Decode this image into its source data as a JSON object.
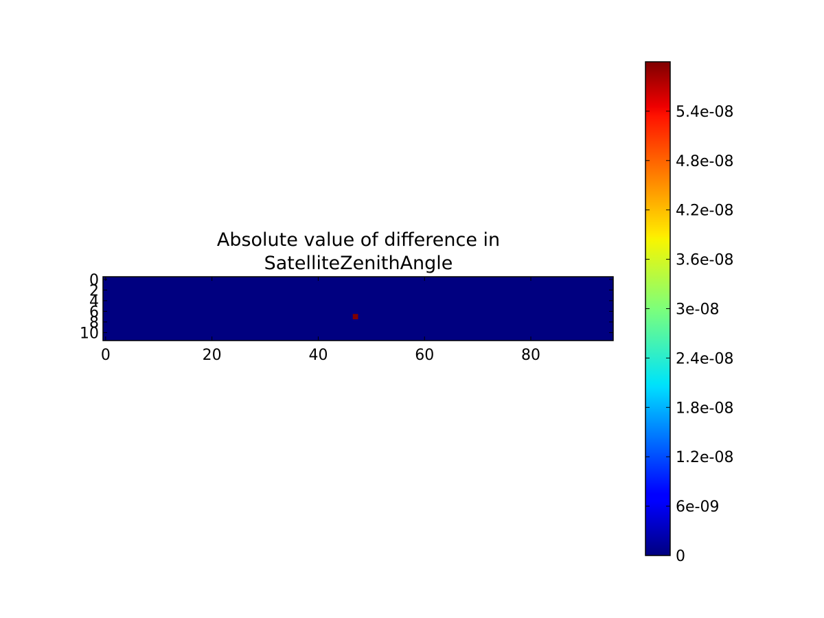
{
  "chart_data": {
    "type": "heatmap",
    "title": [
      "Absolute value of difference in",
      "SatelliteZenithAngle"
    ],
    "xlabel": "",
    "ylabel": "",
    "grid": false,
    "shape": {
      "rows": 12,
      "cols": 96
    },
    "xlim": [
      0,
      96
    ],
    "ylim": [
      12,
      0
    ],
    "x_ticks": [
      0,
      20,
      40,
      60,
      80
    ],
    "x_tick_labels": [
      "0",
      "20",
      "40",
      "60",
      "80"
    ],
    "y_ticks": [
      0,
      2,
      4,
      6,
      8,
      10
    ],
    "y_tick_labels": [
      "0",
      "2",
      "4",
      "6",
      "8",
      "10"
    ],
    "background_value": 0,
    "nonzero_cells": [
      {
        "row": 7,
        "col": 47,
        "value": 6e-08
      }
    ],
    "colormap": "jet",
    "colorbar": {
      "vmin": 0,
      "vmax": 6e-08,
      "ticks": [
        0,
        6e-09,
        1.2e-08,
        1.8e-08,
        2.4e-08,
        3e-08,
        3.6e-08,
        4.2e-08,
        4.8e-08,
        5.4e-08
      ],
      "tick_labels": [
        "0",
        "6e-09",
        "1.2e-08",
        "1.8e-08",
        "2.4e-08",
        "3e-08",
        "3.6e-08",
        "4.2e-08",
        "4.8e-08",
        "5.4e-08"
      ]
    },
    "colors": {
      "low": "#00007f",
      "high": "#7f0000"
    }
  }
}
